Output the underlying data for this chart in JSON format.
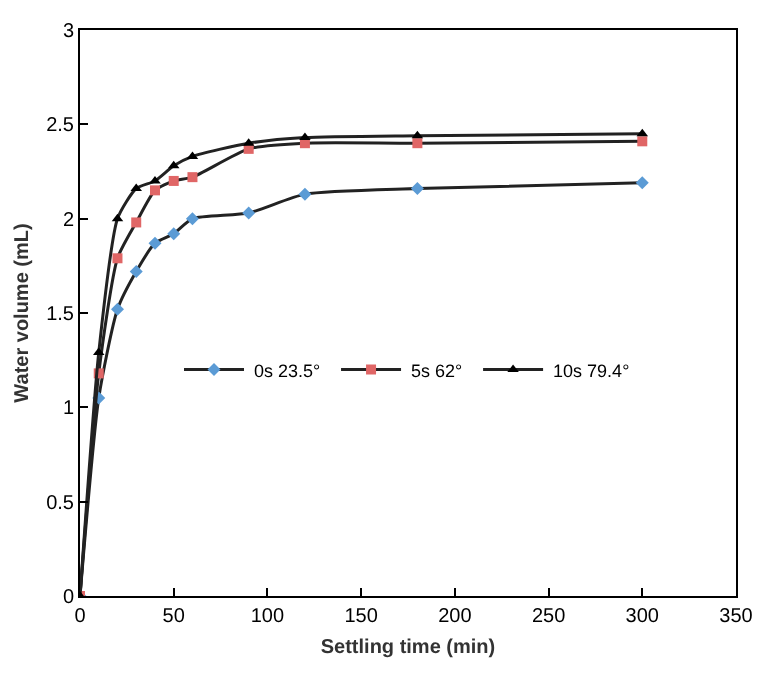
{
  "chart_data": {
    "type": "line",
    "xlabel": "Settling time (min)",
    "ylabel": "Water volume (mL)",
    "x": [
      0,
      10,
      20,
      30,
      40,
      50,
      60,
      90,
      120,
      180,
      300
    ],
    "series": [
      {
        "name": "0s 23.5°",
        "color": "#5b9bd5",
        "marker": "diamond",
        "values": [
          0,
          1.05,
          1.52,
          1.72,
          1.87,
          1.92,
          2.0,
          2.03,
          2.13,
          2.16,
          2.19
        ]
      },
      {
        "name": "5s 62°",
        "color": "#e06666",
        "marker": "square",
        "values": [
          0,
          1.18,
          1.79,
          1.98,
          2.15,
          2.2,
          2.22,
          2.37,
          2.4,
          2.4,
          2.41
        ]
      },
      {
        "name": "10s 79.4°",
        "color": "#000000",
        "marker": "triangle",
        "values": [
          0,
          1.29,
          2.0,
          2.16,
          2.2,
          2.28,
          2.33,
          2.4,
          2.43,
          2.44,
          2.45
        ]
      }
    ],
    "xlim": [
      0,
      350
    ],
    "xticks": [
      0,
      50,
      100,
      150,
      200,
      250,
      300,
      350
    ],
    "ylim": [
      0,
      3
    ],
    "yticks": [
      0,
      0.5,
      1,
      1.5,
      2,
      2.5,
      3
    ],
    "grid": false,
    "legend": "center",
    "line_style": "solid"
  }
}
